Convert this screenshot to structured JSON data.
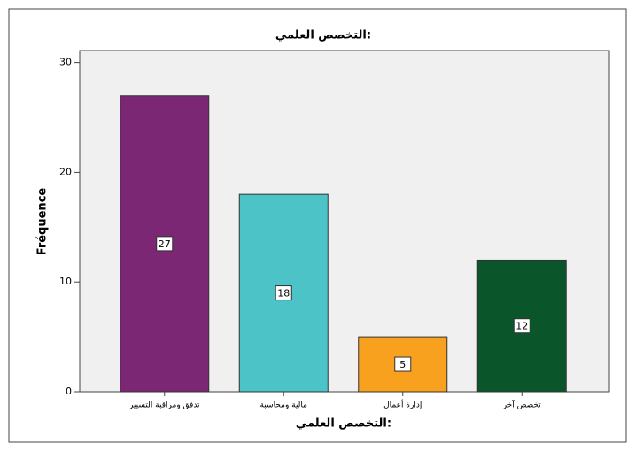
{
  "chart_data": {
    "type": "bar",
    "title": "التخصص العلمي:",
    "x_label": "التخصص العلمي:",
    "y_label": "Fréquence",
    "categories": [
      "تدفق ومراقبة التسيير",
      "مالية ومحاسبة",
      "إدارة أعمال",
      "تخصص آخر"
    ],
    "values": [
      27,
      18,
      5,
      12
    ],
    "colors": [
      "#7b2774",
      "#4cc3c6",
      "#f7a11f",
      "#0b552b"
    ],
    "ylim": [
      0,
      31.1
    ],
    "yticks": [
      0,
      10,
      20,
      30
    ]
  }
}
